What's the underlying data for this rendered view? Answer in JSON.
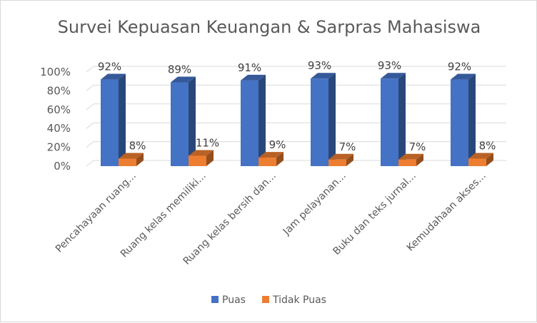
{
  "chart_data": {
    "type": "bar",
    "title": "Survei Kepuasan Keuangan & Sarpras Mahasiswa",
    "categories": [
      "Pencahayaan ruang...",
      "Ruang kelas memiliki...",
      "Ruang kelas bersih dan...",
      "Jam pelayanan...",
      "Buku dan teks jurnal...",
      "Kemudahaan akses..."
    ],
    "series": [
      {
        "name": "Puas",
        "values": [
          92,
          89,
          91,
          93,
          93,
          92
        ],
        "labels": [
          "92%",
          "89%",
          "91%",
          "93%",
          "93%",
          "92%"
        ],
        "color": "#4472c4"
      },
      {
        "name": "Tidak Puas",
        "values": [
          8,
          11,
          9,
          7,
          7,
          8
        ],
        "labels": [
          "8%",
          "11%",
          "9%",
          "7%",
          "7%",
          "8%"
        ],
        "color": "#ed7d31"
      }
    ],
    "ylim": [
      0,
      100
    ],
    "yticks": [
      0,
      20,
      40,
      60,
      80,
      100
    ],
    "ytick_labels": [
      "0%",
      "20%",
      "40%",
      "60%",
      "80%",
      "100%"
    ],
    "grid": true,
    "legend_position": "bottom"
  }
}
